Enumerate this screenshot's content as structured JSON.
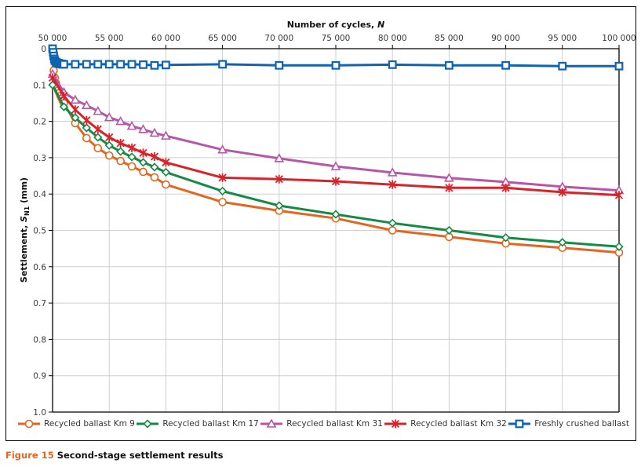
{
  "chart_data": {
    "type": "line",
    "title": "",
    "xlabel": "Number of cycles, N",
    "xlabel_main": "Number of cycles, ",
    "xlabel_var": "N",
    "ylabel": "Settlement, SN1 (mm)",
    "ylabel_main": "Settlement, ",
    "ylabel_var": "S",
    "ylabel_sub": "N1",
    "ylabel_unit": " (mm)",
    "xlim": [
      50000,
      100000
    ],
    "ylim": [
      0,
      1.0
    ],
    "y_inverted": true,
    "x_axis_position": "top",
    "grid": true,
    "legend_position": "bottom",
    "x_ticks": [
      50000,
      55000,
      60000,
      65000,
      70000,
      75000,
      80000,
      85000,
      90000,
      95000,
      100000
    ],
    "x_tick_labels": [
      "50 000",
      "55 000",
      "60 000",
      "65 000",
      "70 000",
      "75 000",
      "80 000",
      "85 000",
      "90 000",
      "95 000",
      "100 000"
    ],
    "y_ticks": [
      0,
      0.1,
      0.2,
      0.3,
      0.4,
      0.5,
      0.6,
      0.7,
      0.8,
      0.9,
      1.0
    ],
    "y_tick_labels": [
      "0",
      "0.1",
      "0.2",
      "0.3",
      "0.4",
      "0.5",
      "0.6",
      "0.7",
      "0.8",
      "0.9",
      "1.0"
    ],
    "series": [
      {
        "name": "Recycled ballast Km 9",
        "color": "#e2661f",
        "marker": "circle",
        "x": [
          50000,
          50100,
          50200,
          50300,
          50400,
          50500,
          50600,
          50700,
          50800,
          50900,
          51000,
          52000,
          53000,
          54000,
          55000,
          56000,
          57000,
          58000,
          59000,
          60000,
          65000,
          70000,
          75000,
          80000,
          85000,
          90000,
          95000,
          100000
        ],
        "y": [
          0.0,
          0.06,
          0.08,
          0.095,
          0.105,
          0.115,
          0.122,
          0.13,
          0.137,
          0.143,
          0.15,
          0.205,
          0.246,
          0.274,
          0.294,
          0.309,
          0.324,
          0.339,
          0.354,
          0.374,
          0.422,
          0.446,
          0.467,
          0.5,
          0.518,
          0.536,
          0.548,
          0.561
        ]
      },
      {
        "name": "Recycled ballast Km 17",
        "color": "#138a45",
        "marker": "diamond",
        "x": [
          50000,
          51000,
          52000,
          53000,
          54000,
          55000,
          56000,
          57000,
          58000,
          59000,
          60000,
          65000,
          70000,
          75000,
          80000,
          85000,
          90000,
          95000,
          100000
        ],
        "y": [
          0.1,
          0.16,
          0.19,
          0.218,
          0.244,
          0.266,
          0.283,
          0.298,
          0.313,
          0.326,
          0.34,
          0.392,
          0.432,
          0.456,
          0.48,
          0.5,
          0.52,
          0.533,
          0.545
        ]
      },
      {
        "name": "Recycled ballast Km 31",
        "color": "#b556a8",
        "marker": "triangle",
        "x": [
          50000,
          51000,
          52000,
          53000,
          54000,
          55000,
          56000,
          57000,
          58000,
          59000,
          60000,
          65000,
          70000,
          75000,
          80000,
          85000,
          90000,
          95000,
          100000
        ],
        "y": [
          0.07,
          0.12,
          0.141,
          0.156,
          0.172,
          0.189,
          0.2,
          0.213,
          0.222,
          0.232,
          0.24,
          0.278,
          0.302,
          0.324,
          0.341,
          0.356,
          0.367,
          0.38,
          0.39
        ]
      },
      {
        "name": "Recycled ballast Km 32",
        "color": "#d7242a",
        "marker": "star",
        "x": [
          50000,
          51000,
          52000,
          53000,
          54000,
          55000,
          56000,
          57000,
          58000,
          59000,
          60000,
          65000,
          70000,
          75000,
          80000,
          85000,
          90000,
          95000,
          100000
        ],
        "y": [
          0.08,
          0.13,
          0.168,
          0.197,
          0.222,
          0.244,
          0.26,
          0.273,
          0.287,
          0.297,
          0.313,
          0.355,
          0.359,
          0.365,
          0.374,
          0.383,
          0.383,
          0.395,
          0.403
        ]
      },
      {
        "name": "Freshly crushed ballast",
        "color": "#0e64b0",
        "marker": "square",
        "x": [
          50000,
          50050,
          50100,
          50150,
          50200,
          50300,
          50400,
          50500,
          50600,
          50700,
          50800,
          50900,
          51000,
          52000,
          53000,
          54000,
          55000,
          56000,
          57000,
          58000,
          59000,
          60000,
          65000,
          70000,
          75000,
          80000,
          85000,
          90000,
          95000,
          100000
        ],
        "y": [
          0.0,
          0.01,
          0.02,
          0.028,
          0.033,
          0.037,
          0.039,
          0.04,
          0.041,
          0.042,
          0.042,
          0.043,
          0.043,
          0.043,
          0.043,
          0.043,
          0.043,
          0.043,
          0.043,
          0.044,
          0.046,
          0.045,
          0.043,
          0.046,
          0.046,
          0.044,
          0.046,
          0.046,
          0.048,
          0.048
        ]
      }
    ]
  },
  "caption": {
    "figure_number": "Figure 15",
    "text": "Second-stage settlement results"
  }
}
